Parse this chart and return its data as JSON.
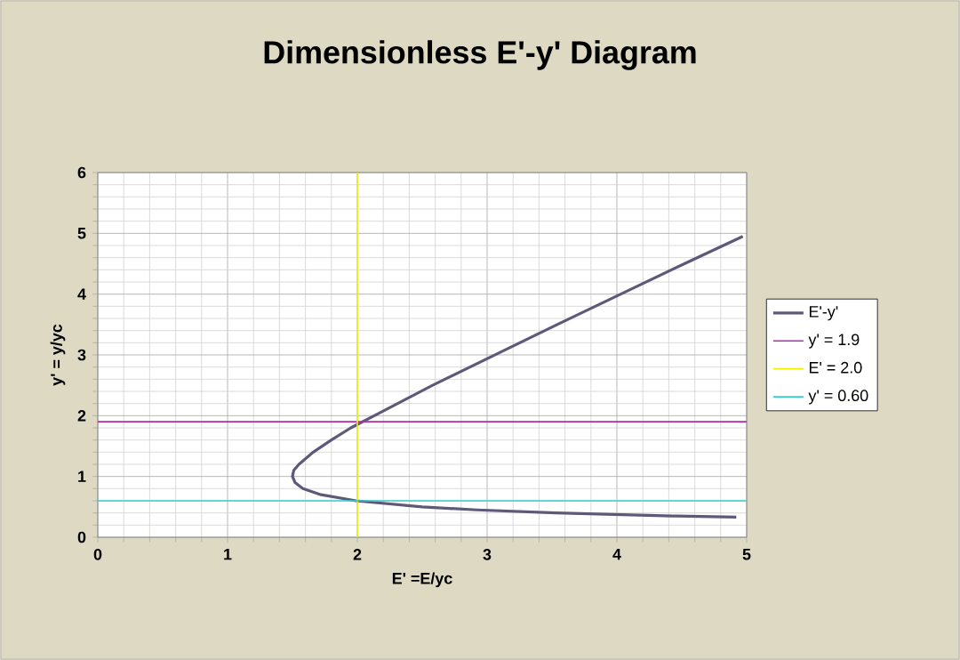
{
  "chart_data": {
    "type": "line",
    "title": "Dimensionless E'-y' Diagram",
    "xlabel": "E' =E/yc",
    "ylabel": "y' = y/yc",
    "xlim": [
      0,
      5
    ],
    "ylim": [
      0,
      6
    ],
    "xticks": [
      0,
      1,
      2,
      3,
      4,
      5
    ],
    "yticks": [
      0,
      1,
      2,
      3,
      4,
      5,
      6
    ],
    "grid": true,
    "legend": "right",
    "marker": "none",
    "line_style": "solid",
    "series": [
      {
        "name": "E'-y'",
        "color": "#5c5a78",
        "x": [
          4.92,
          4.43,
          3.53,
          2.92,
          2.5,
          1.99,
          1.72,
          1.58,
          1.52,
          1.5,
          1.51,
          1.55,
          1.66,
          1.8,
          1.95,
          2.13,
          2.58,
          3.06,
          3.54,
          4.03,
          4.52,
          4.97
        ],
        "values": [
          0.33,
          0.35,
          0.4,
          0.45,
          0.5,
          0.6,
          0.7,
          0.8,
          0.9,
          1.0,
          1.1,
          1.2,
          1.4,
          1.6,
          1.8,
          2.0,
          2.5,
          3.0,
          3.5,
          4.0,
          4.5,
          4.95
        ]
      },
      {
        "name": "y' = 1.9",
        "color": "#b02cb0",
        "x": [
          0,
          5
        ],
        "values": [
          1.9,
          1.9
        ]
      },
      {
        "name": "E' = 2.0",
        "color": "#f0f000",
        "x": [
          2,
          2
        ],
        "values": [
          0,
          6
        ]
      },
      {
        "name": "y' = 0.60",
        "color": "#30d0d0",
        "x": [
          0,
          5
        ],
        "values": [
          0.6,
          0.6
        ]
      }
    ]
  }
}
